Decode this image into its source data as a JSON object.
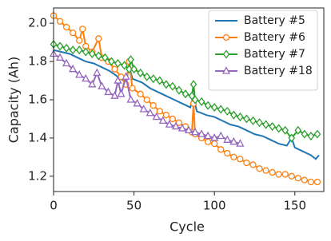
{
  "chart_data": {
    "type": "line",
    "x_label": "Cycle",
    "y_label": "Capacity (Ah)",
    "xlim": [
      0,
      168
    ],
    "ylim": [
      1.12,
      2.08
    ],
    "xticks": [
      0,
      50,
      100,
      150
    ],
    "yticks": [
      1.2,
      1.4,
      1.6,
      1.8,
      {
        "value": 2,
        "label": "2.0"
      }
    ],
    "legend": "upper right",
    "series": [
      {
        "name": "Battery #5",
        "color": "#1f77b4",
        "marker": "none",
        "x": [
          0,
          5,
          10,
          15,
          20,
          25,
          30,
          35,
          40,
          45,
          47,
          49,
          55,
          60,
          65,
          70,
          75,
          80,
          85,
          87,
          89,
          95,
          100,
          105,
          110,
          115,
          120,
          125,
          130,
          135,
          140,
          145,
          148,
          150,
          155,
          160,
          163,
          165
        ],
        "values": [
          1.86,
          1.85,
          1.84,
          1.82,
          1.8,
          1.79,
          1.77,
          1.75,
          1.72,
          1.69,
          1.78,
          1.71,
          1.69,
          1.66,
          1.64,
          1.62,
          1.6,
          1.58,
          1.56,
          1.62,
          1.54,
          1.52,
          1.51,
          1.49,
          1.47,
          1.46,
          1.44,
          1.42,
          1.41,
          1.39,
          1.37,
          1.36,
          1.4,
          1.35,
          1.33,
          1.31,
          1.29,
          1.31
        ]
      },
      {
        "name": "Battery #6",
        "color": "#ff7f0e",
        "marker": "circle",
        "x": [
          0,
          4,
          8,
          12,
          16,
          18,
          20,
          24,
          28,
          30,
          34,
          38,
          42,
          45,
          47,
          49,
          54,
          58,
          62,
          66,
          70,
          74,
          78,
          82,
          86,
          87,
          88,
          92,
          96,
          100,
          104,
          108,
          112,
          116,
          120,
          124,
          128,
          132,
          136,
          140,
          144,
          148,
          152,
          156,
          160,
          164
        ],
        "values": [
          2.04,
          2.01,
          1.98,
          1.95,
          1.91,
          1.97,
          1.88,
          1.85,
          1.92,
          1.82,
          1.8,
          1.76,
          1.72,
          1.68,
          1.8,
          1.66,
          1.63,
          1.6,
          1.57,
          1.54,
          1.52,
          1.5,
          1.48,
          1.46,
          1.43,
          1.58,
          1.42,
          1.4,
          1.38,
          1.37,
          1.34,
          1.32,
          1.3,
          1.29,
          1.27,
          1.26,
          1.24,
          1.23,
          1.22,
          1.21,
          1.21,
          1.2,
          1.19,
          1.18,
          1.17,
          1.17
        ]
      },
      {
        "name": "Battery #7",
        "color": "#2ca02c",
        "marker": "diamond",
        "x": [
          0,
          4,
          8,
          12,
          16,
          20,
          24,
          28,
          32,
          36,
          40,
          44,
          47,
          48,
          50,
          54,
          58,
          62,
          66,
          70,
          74,
          78,
          82,
          86,
          87,
          88,
          92,
          96,
          100,
          104,
          108,
          112,
          116,
          120,
          124,
          128,
          132,
          136,
          140,
          144,
          148,
          152,
          156,
          160,
          164
        ],
        "values": [
          1.89,
          1.88,
          1.87,
          1.86,
          1.86,
          1.85,
          1.84,
          1.83,
          1.82,
          1.8,
          1.79,
          1.78,
          1.76,
          1.81,
          1.76,
          1.74,
          1.72,
          1.71,
          1.7,
          1.68,
          1.67,
          1.65,
          1.63,
          1.62,
          1.68,
          1.6,
          1.59,
          1.57,
          1.56,
          1.55,
          1.54,
          1.52,
          1.51,
          1.5,
          1.49,
          1.48,
          1.47,
          1.46,
          1.45,
          1.44,
          1.4,
          1.44,
          1.42,
          1.41,
          1.42
        ]
      },
      {
        "name": "Battery #18",
        "color": "#9467bd",
        "marker": "triangle",
        "x": [
          0,
          4,
          8,
          12,
          16,
          20,
          24,
          27,
          30,
          34,
          38,
          40,
          42,
          45,
          48,
          52,
          56,
          60,
          64,
          68,
          72,
          76,
          80,
          84,
          88,
          92,
          96,
          100,
          104,
          108,
          112,
          116
        ],
        "values": [
          1.84,
          1.82,
          1.79,
          1.76,
          1.73,
          1.71,
          1.68,
          1.74,
          1.67,
          1.64,
          1.62,
          1.7,
          1.63,
          1.72,
          1.6,
          1.58,
          1.55,
          1.53,
          1.51,
          1.49,
          1.47,
          1.46,
          1.45,
          1.44,
          1.43,
          1.42,
          1.41,
          1.4,
          1.41,
          1.39,
          1.38,
          1.37
        ]
      }
    ]
  }
}
